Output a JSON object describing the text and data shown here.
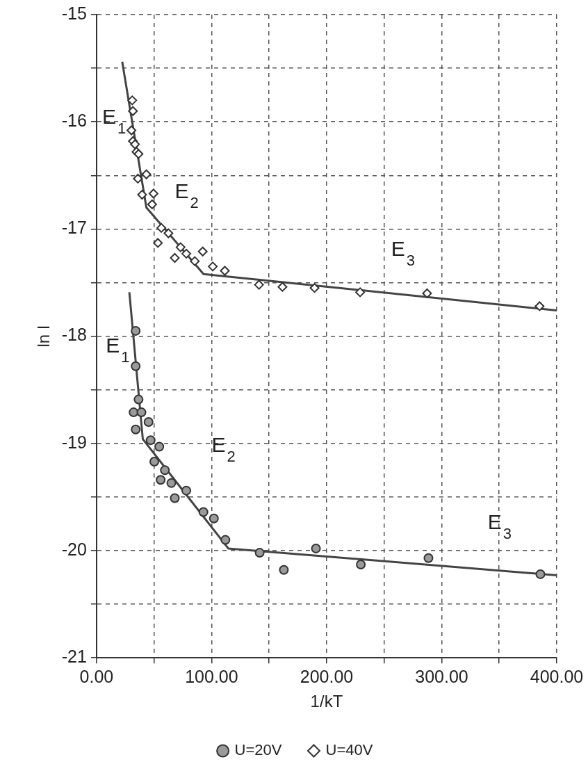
{
  "chart_data": {
    "type": "scatter",
    "xlabel": "1/kT",
    "ylabel": "ln I",
    "xlim": [
      0,
      400
    ],
    "ylim": [
      -21,
      -15
    ],
    "xticks": [
      {
        "value": 0,
        "label": "0.00"
      },
      {
        "value": 50,
        "label": null
      },
      {
        "value": 100,
        "label": "100.00"
      },
      {
        "value": 150,
        "label": null
      },
      {
        "value": 200,
        "label": "200.00"
      },
      {
        "value": 250,
        "label": null
      },
      {
        "value": 300,
        "label": "300.00"
      },
      {
        "value": 350,
        "label": null
      },
      {
        "value": 400,
        "label": "400.00"
      }
    ],
    "yticks": [
      -21,
      {
        "value": -20.5,
        "label": null
      },
      -20,
      {
        "value": -19.5,
        "label": null
      },
      -19,
      {
        "value": -18.5,
        "label": null
      },
      -18,
      {
        "value": -17.5,
        "label": null
      },
      -17,
      {
        "value": -16.5,
        "label": null
      },
      -16,
      {
        "value": -15.5,
        "label": null
      },
      -15
    ],
    "grid": true,
    "legend": "bottom",
    "series": [
      {
        "name": "U=20V",
        "marker": "circle",
        "color": "#333333",
        "x": [
          34,
          34,
          36.5,
          32.2,
          39,
          45.2,
          34,
          47,
          54.5,
          50.2,
          59.4,
          55.7,
          65,
          78,
          68,
          92.9,
          102,
          112,
          141.8,
          162.8,
          190.7,
          229.7,
          288.5,
          385.8
        ],
        "values": [
          -17.95,
          -18.28,
          -18.59,
          -18.71,
          -18.71,
          -18.8,
          -18.87,
          -18.97,
          -19.03,
          -19.17,
          -19.25,
          -19.34,
          -19.37,
          -19.44,
          -19.51,
          -19.64,
          -19.7,
          -19.9,
          -20.02,
          -20.18,
          -19.98,
          -20.13,
          -20.07,
          -20.22
        ]
      },
      {
        "name": "U=40V",
        "marker": "diamond",
        "color": "#333333",
        "x": [
          31,
          31.6,
          30.3,
          31.6,
          33.4,
          34.7,
          36.5,
          35.9,
          43.3,
          39.6,
          49.5,
          48.3,
          56.3,
          62.5,
          53.3,
          73,
          68,
          78,
          85.4,
          92.3,
          101,
          111.5,
          141.2,
          161.6,
          189.5,
          229.1,
          287.3,
          385.1
        ],
        "values": [
          -15.8,
          -15.9,
          -16.08,
          -16.18,
          -16.21,
          -16.28,
          -16.3,
          -16.53,
          -16.49,
          -16.68,
          -16.67,
          -16.77,
          -16.99,
          -17.04,
          -17.13,
          -17.17,
          -17.27,
          -17.23,
          -17.3,
          -17.21,
          -17.35,
          -17.39,
          -17.52,
          -17.54,
          -17.55,
          -17.59,
          -17.6,
          -17.72
        ]
      },
      {
        "type": "line",
        "marker": "none",
        "color": "#444444",
        "x": [
          28.5,
          40.2,
          114.5,
          400
        ],
        "values": [
          -17.59,
          -18.96,
          -19.98,
          -20.23
        ]
      },
      {
        "type": "line",
        "marker": "none",
        "color": "#444444",
        "x": [
          22.3,
          43.3,
          93,
          400
        ],
        "values": [
          -15.44,
          -16.8,
          -17.42,
          -17.76
        ]
      }
    ],
    "annotations": [
      "E$_{1}$",
      "E$_{2}$",
      "E$_{3}$",
      "E$_{1}$",
      "E$_{2}$",
      "E$_{3}$"
    ]
  }
}
